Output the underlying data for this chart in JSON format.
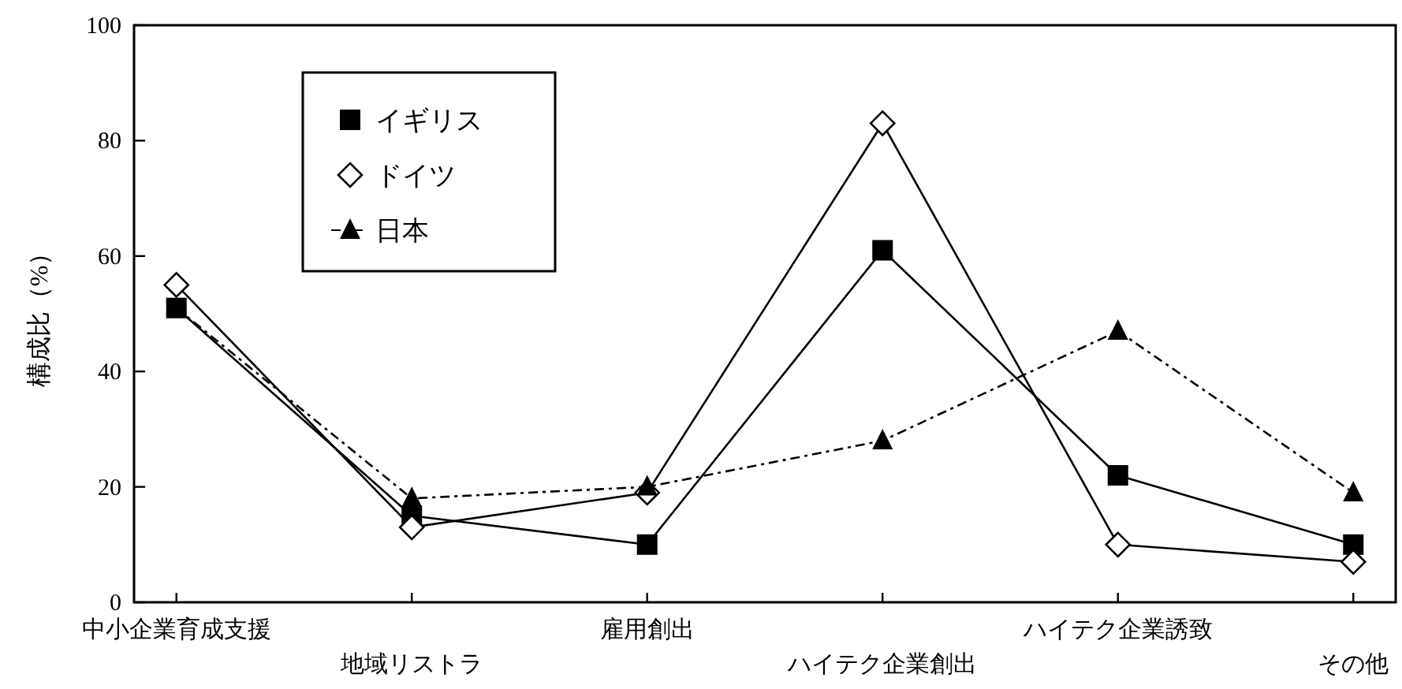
{
  "chart_data": {
    "type": "line",
    "ylabel": "構成比（%）",
    "categories": [
      "中小企業育成支援",
      "地域リストラ",
      "雇用創出",
      "ハイテク企業創出",
      "ハイテク企業誘致",
      "その他"
    ],
    "series": [
      {
        "name": "イギリス",
        "color": "#000000",
        "marker": "square",
        "line_style": "solid",
        "values": [
          51,
          15,
          10,
          61,
          22,
          10
        ]
      },
      {
        "name": "ドイツ",
        "color": "#000000",
        "marker": "diamond",
        "line_style": "solid",
        "values": [
          55,
          13,
          19,
          83,
          10,
          7
        ]
      },
      {
        "name": "日本",
        "color": "#000000",
        "marker": "triangle",
        "line_style": "dashed",
        "values": [
          51,
          18,
          20,
          28,
          47,
          19
        ]
      }
    ],
    "ylim": [
      0,
      100
    ],
    "yticks": [
      0,
      20,
      40,
      60,
      80,
      100
    ],
    "legend": "top left",
    "grid": false
  }
}
